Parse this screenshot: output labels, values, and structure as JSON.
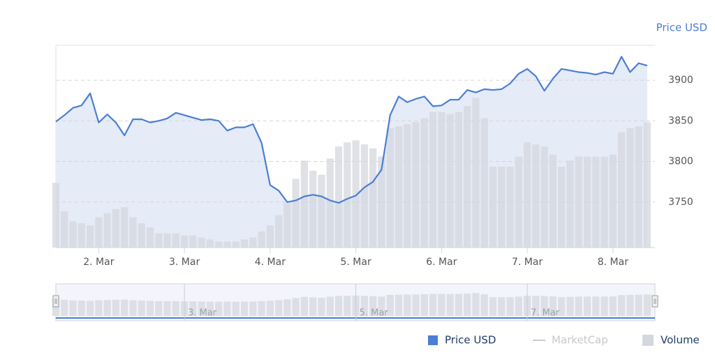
{
  "chart_data": {
    "type": "line",
    "y_label": "Price USD",
    "x": [
      1.5,
      1.6,
      1.7,
      1.8,
      1.9,
      2.0,
      2.1,
      2.2,
      2.3,
      2.4,
      2.5,
      2.6,
      2.7,
      2.8,
      2.9,
      3.0,
      3.1,
      3.2,
      3.3,
      3.4,
      3.5,
      3.6,
      3.7,
      3.8,
      3.9,
      4.0,
      4.1,
      4.2,
      4.3,
      4.4,
      4.5,
      4.6,
      4.7,
      4.8,
      4.9,
      5.0,
      5.1,
      5.2,
      5.3,
      5.4,
      5.5,
      5.6,
      5.7,
      5.8,
      5.9,
      6.0,
      6.1,
      6.2,
      6.3,
      6.4,
      6.5,
      6.6,
      6.7,
      6.8,
      6.9,
      7.0,
      7.1,
      7.2,
      7.3,
      7.4,
      7.5,
      7.6,
      7.7,
      7.8,
      7.9,
      8.0,
      8.1,
      8.2,
      8.3,
      8.4
    ],
    "series": [
      {
        "name": "Price USD",
        "color": "#4a7fd4",
        "values": [
          3849,
          3857,
          3866,
          3869,
          3884,
          3848,
          3858,
          3848,
          3832,
          3852,
          3852,
          3848,
          3850,
          3853,
          3860,
          3857,
          3854,
          3851,
          3852,
          3850,
          3838,
          3842,
          3842,
          3846,
          3823,
          3771,
          3764,
          3750,
          3752,
          3757,
          3759,
          3757,
          3752,
          3749,
          3754,
          3758,
          3768,
          3775,
          3790,
          3857,
          3880,
          3873,
          3877,
          3880,
          3868,
          3869,
          3876,
          3876,
          3888,
          3885,
          3889,
          3888,
          3889,
          3896,
          3908,
          3914,
          3905,
          3887,
          3902,
          3914,
          3912,
          3910,
          3909,
          3907,
          3910,
          3908,
          3929,
          3910,
          3921,
          3918
        ]
      },
      {
        "name": "MarketCap",
        "color": "#cccccc",
        "visible": false
      },
      {
        "name": "Volume",
        "color": "#d4d7de",
        "axis": "y2",
        "values": [
          32,
          18,
          13,
          12,
          11,
          15,
          17,
          19,
          20,
          15,
          12,
          10,
          7,
          7,
          7,
          6,
          6,
          5,
          4,
          3,
          3,
          3,
          4,
          5,
          8,
          11,
          16,
          22,
          34,
          43,
          38,
          36,
          44,
          50,
          52,
          53,
          51,
          49,
          45,
          59,
          60,
          61,
          62,
          64,
          67,
          67,
          66,
          67,
          70,
          74,
          64,
          40,
          40,
          40,
          45,
          52,
          51,
          50,
          46,
          40,
          43,
          45,
          45,
          45,
          45,
          46,
          57,
          59,
          60,
          62
        ]
      }
    ],
    "xlim": [
      1.5,
      8.49
    ],
    "xticks": [
      {
        "value": 2,
        "label": "2. Mar"
      },
      {
        "value": 3,
        "label": "3. Mar"
      },
      {
        "value": 4,
        "label": "4. Mar"
      },
      {
        "value": 5,
        "label": "5. Mar"
      },
      {
        "value": 6,
        "label": "6. Mar"
      },
      {
        "value": 7,
        "label": "7. Mar"
      },
      {
        "value": 8,
        "label": "8. Mar"
      }
    ],
    "ylim": [
      3694,
      3943
    ],
    "yticks": [
      3750,
      3800,
      3850,
      3900
    ],
    "y2lim": [
      0,
      100
    ],
    "grid": true,
    "navigator_xticks": [
      {
        "value": 3,
        "label": "3. Mar"
      },
      {
        "value": 5,
        "label": "5. Mar"
      },
      {
        "value": 7,
        "label": "7. Mar"
      }
    ],
    "legend": "bottom-right"
  }
}
